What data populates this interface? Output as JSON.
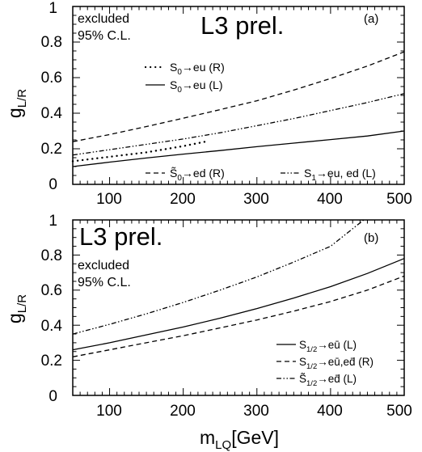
{
  "chart_data": [
    {
      "type": "line",
      "panel_label": "(a)",
      "watermark": "L3 prel.",
      "excluded_text": [
        "excluded",
        "95% C.L."
      ],
      "ylabel": "g",
      "ylabel_sub": "L/R",
      "xlabel": "",
      "xlim": [
        50,
        500
      ],
      "ylim": [
        0,
        1
      ],
      "x_ticks": [
        "100",
        "200",
        "300",
        "400",
        "500"
      ],
      "y_ticks": [
        "0",
        "0.2",
        "0.4",
        "0.6",
        "0.8",
        "1"
      ],
      "legend_top": [
        {
          "label": "S",
          "sub": "0",
          "rest": "→eu (R)",
          "style": "dotted"
        },
        {
          "label": "S",
          "sub": "0",
          "rest": "→eu (L)",
          "style": "solid"
        }
      ],
      "legend_bottom": [
        {
          "label": "S̃",
          "sub": "0",
          "rest": "→ed (R)",
          "style": "dashed"
        },
        {
          "label": "S",
          "sub": "1",
          "rest": "→eu, ed (L)",
          "style": "dashdotdot"
        }
      ],
      "series": [
        {
          "style": "dotted",
          "x": [
            50,
            100,
            150,
            200,
            230
          ],
          "y": [
            0.13,
            0.155,
            0.18,
            0.215,
            0.24
          ]
        },
        {
          "style": "solid",
          "x": [
            50,
            100,
            150,
            200,
            250,
            300,
            350,
            400,
            450,
            500
          ],
          "y": [
            0.1,
            0.125,
            0.148,
            0.17,
            0.19,
            0.212,
            0.232,
            0.252,
            0.272,
            0.3
          ]
        },
        {
          "style": "dashed",
          "x": [
            50,
            100,
            150,
            200,
            250,
            300,
            350,
            400,
            450,
            500
          ],
          "y": [
            0.24,
            0.28,
            0.325,
            0.372,
            0.42,
            0.47,
            0.53,
            0.595,
            0.665,
            0.745
          ]
        },
        {
          "style": "dashdotdot",
          "x": [
            50,
            100,
            150,
            200,
            250,
            300,
            350,
            400,
            450,
            500
          ],
          "y": [
            0.165,
            0.195,
            0.225,
            0.255,
            0.29,
            0.33,
            0.37,
            0.415,
            0.46,
            0.51
          ]
        }
      ]
    },
    {
      "type": "line",
      "panel_label": "(b)",
      "watermark": "L3 prel.",
      "excluded_text": [
        "excluded",
        "95% C.L."
      ],
      "ylabel": "g",
      "ylabel_sub": "L/R",
      "xlabel": "m",
      "xlabel_sub": "LQ",
      "xlabel_rest": "[GeV]",
      "xlim": [
        50,
        500
      ],
      "ylim": [
        0,
        1
      ],
      "x_ticks": [
        "100",
        "200",
        "300",
        "400",
        "500"
      ],
      "y_ticks": [
        "0",
        "0.2",
        "0.4",
        "0.6",
        "0.8",
        "1"
      ],
      "legend": [
        {
          "label": "S",
          "sub": "1/2",
          "rest": "→eū (L)",
          "style": "solid"
        },
        {
          "label": "S",
          "sub": "1/2",
          "rest": "→eū,ed̄ (R)",
          "style": "dashed"
        },
        {
          "label": "S̃",
          "sub": "1/2",
          "rest": "→ed̄ (L)",
          "style": "dashdotdot"
        }
      ],
      "series": [
        {
          "style": "solid",
          "x": [
            50,
            100,
            150,
            200,
            250,
            300,
            350,
            400,
            450,
            500
          ],
          "y": [
            0.26,
            0.3,
            0.345,
            0.39,
            0.44,
            0.495,
            0.555,
            0.62,
            0.695,
            0.78
          ]
        },
        {
          "style": "dashed",
          "x": [
            50,
            100,
            150,
            200,
            250,
            300,
            350,
            400,
            450,
            500
          ],
          "y": [
            0.22,
            0.26,
            0.3,
            0.34,
            0.385,
            0.43,
            0.48,
            0.535,
            0.6,
            0.68
          ]
        },
        {
          "style": "dashdotdot",
          "x": [
            50,
            100,
            150,
            200,
            250,
            300,
            350,
            400,
            445
          ],
          "y": [
            0.35,
            0.405,
            0.465,
            0.53,
            0.6,
            0.675,
            0.76,
            0.85,
            1.0
          ]
        }
      ]
    }
  ]
}
